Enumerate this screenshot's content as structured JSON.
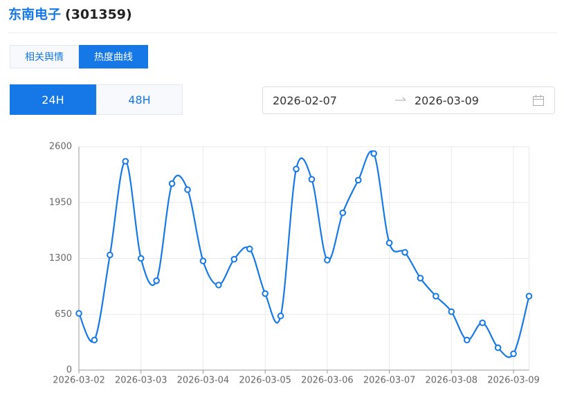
{
  "header": {
    "name": "东南电子",
    "code": "(301359)"
  },
  "tabs": {
    "items": [
      "相关舆情",
      "热度曲线"
    ],
    "active": 1
  },
  "range_buttons": {
    "items": [
      "24H",
      "48H"
    ],
    "active": 0
  },
  "date_range": {
    "start": "2026-02-07",
    "end": "2026-03-09"
  },
  "chart_data": {
    "type": "line",
    "color": "#1677e6",
    "categories": [
      "2026-03-02",
      null,
      null,
      null,
      "2026-03-03",
      null,
      null,
      null,
      "2026-03-04",
      null,
      null,
      null,
      "2026-03-05",
      null,
      null,
      null,
      "2026-03-06",
      null,
      null,
      null,
      "2026-03-07",
      null,
      null,
      null,
      "2026-03-08",
      null,
      null,
      null,
      "2026-03-09",
      null
    ],
    "values": [
      660,
      350,
      1340,
      2430,
      1300,
      1040,
      2170,
      2100,
      1270,
      990,
      1290,
      1410,
      890,
      630,
      2340,
      2220,
      1280,
      1830,
      2210,
      2520,
      1480,
      1370,
      1070,
      860,
      680,
      350,
      550,
      260,
      190,
      860
    ],
    "ylim": [
      0,
      2600
    ],
    "yticks": [
      0,
      650,
      1300,
      1950,
      2600
    ],
    "grid": true
  }
}
